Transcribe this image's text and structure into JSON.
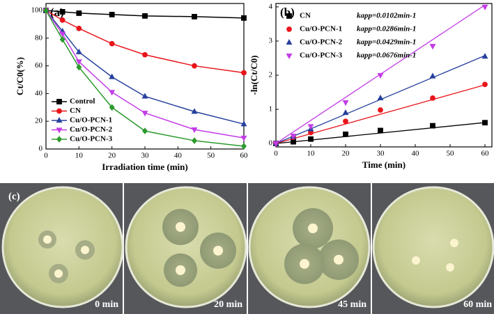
{
  "chart_data": [
    {
      "type": "line",
      "panel_label": "(a)",
      "x_label": "Irradiation time (min)",
      "y_label": "Ct/C0(%)",
      "x": [
        0,
        5,
        10,
        20,
        30,
        45,
        60
      ],
      "xlim": [
        0,
        60
      ],
      "xticks": [
        0,
        10,
        20,
        30,
        40,
        50,
        60
      ],
      "ylim": [
        0,
        105
      ],
      "yticks": [
        0,
        20,
        40,
        60,
        80,
        100
      ],
      "legend": "lower left",
      "series": [
        {
          "name": "Control",
          "color": "#000000",
          "marker": "square",
          "values": [
            100,
            99,
            98,
            97,
            96,
            95.5,
            94.5
          ]
        },
        {
          "name": "CN",
          "color": "#e8151b",
          "marker": "circle",
          "values": [
            100,
            93,
            87,
            76,
            68,
            60,
            55
          ]
        },
        {
          "name": "Cu/O-PCN-1",
          "color": "#26409c",
          "marker": "triangle-up",
          "values": [
            100,
            85,
            70,
            52,
            38,
            27,
            18
          ]
        },
        {
          "name": "Cu/O-PCN-2",
          "color": "#c33de6",
          "marker": "triangle-down",
          "values": [
            100,
            83,
            63,
            41,
            26,
            14,
            8
          ]
        },
        {
          "name": "Cu/O-PCN-3",
          "color": "#2b9a2b",
          "marker": "diamond",
          "values": [
            100,
            79,
            59,
            30,
            13,
            6,
            2
          ]
        }
      ]
    },
    {
      "type": "scatter",
      "panel_label": "(b)",
      "x_label": "Time (min)",
      "y_label": "-ln(Ct/C0)",
      "x": [
        0,
        5,
        10,
        20,
        30,
        45,
        60
      ],
      "xlim": [
        0,
        62
      ],
      "xticks": [
        0,
        10,
        20,
        30,
        40,
        50,
        60
      ],
      "ylim": [
        -0.1,
        4.1
      ],
      "yticks": [
        0,
        1,
        2,
        3,
        4
      ],
      "legend": "upper left",
      "series": [
        {
          "name": "CN",
          "color": "#000000",
          "marker": "square",
          "fit_slope": 0.0102,
          "fit_label": "kapp=0.0102min-1",
          "values": [
            0,
            0.05,
            0.13,
            0.27,
            0.38,
            0.52,
            0.61
          ]
        },
        {
          "name": "Cu/O-PCN-1",
          "color": "#e8151b",
          "marker": "circle",
          "fit_slope": 0.0286,
          "fit_label": "kapp=0.0286min-1",
          "values": [
            0,
            0.18,
            0.32,
            0.65,
            0.98,
            1.33,
            1.73
          ]
        },
        {
          "name": "Cu/O-PCN-2",
          "color": "#26409c",
          "marker": "triangle-up",
          "fit_slope": 0.0429,
          "fit_label": "kapp=0.0429min-1",
          "values": [
            0,
            0.2,
            0.42,
            0.9,
            1.33,
            1.97,
            2.55
          ]
        },
        {
          "name": "Cu/O-PCN-3",
          "color": "#c33de6",
          "marker": "triangle-down",
          "fit_slope": 0.0676,
          "fit_label": "kapp=0.0676min-1",
          "values": [
            0,
            0.22,
            0.5,
            1.2,
            2.0,
            2.85,
            4.0
          ]
        }
      ]
    }
  ],
  "photos": {
    "panel_label": "(c)",
    "captions": [
      "0 min",
      "20 min",
      "45 min",
      "60 min"
    ]
  }
}
